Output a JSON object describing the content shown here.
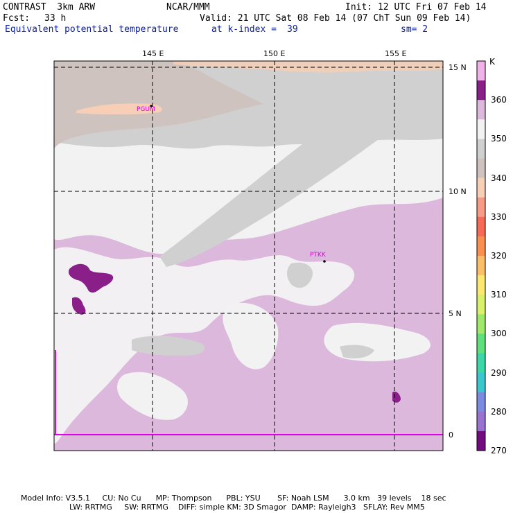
{
  "header": {
    "model": "CONTRAST  3km ARW",
    "center": "NCAR/MMM",
    "init": "Init: 12 UTC Fri 07 Feb 14",
    "fcst_label": "Fcst:",
    "fcst_value": "33 h",
    "valid": "Valid: 21 UTC Sat 08 Feb 14 (07 ChT Sun 09 Feb 14)",
    "field": "Equivalent potential temperature",
    "level": "at k-index =",
    "level_value": "39",
    "smooth": "sm= 2"
  },
  "map": {
    "lon_labels": [
      "145 E",
      "150 E",
      "155 E"
    ],
    "lat_labels": [
      "15 N",
      "10 N",
      "5 N",
      "0"
    ],
    "stations": [
      "PGUM",
      "PTKK"
    ]
  },
  "colorbar": {
    "unit": "K",
    "labels": [
      "360",
      "350",
      "340",
      "330",
      "320",
      "310",
      "300",
      "290",
      "280",
      "270"
    ],
    "colors": [
      "#f0b2e8",
      "#8a1f8a",
      "#ddb8dd",
      "#f2f2f2",
      "#d0d0d0",
      "#cfc3bf",
      "#f6cfb6",
      "#f79a86",
      "#f76a55",
      "#f9904f",
      "#fbbf6a",
      "#fbe870",
      "#d8f06a",
      "#9fe86a",
      "#5fe07a",
      "#3cd7a6",
      "#3cc7cf",
      "#7a8be0",
      "#9a72d0",
      "#730a80"
    ]
  },
  "footer": {
    "line1": "Model Info: V3.5.1     CU: No Cu      MP: Thompson      PBL: YSU       SF: Noah LSM      3.0 km   39 levels    18 sec",
    "line2": "LW: RRTMG     SW: RRTMG    DIFF: simple KM: 3D Smagor  DAMP: Rayleigh3   SFLAY: Rev MM5"
  }
}
